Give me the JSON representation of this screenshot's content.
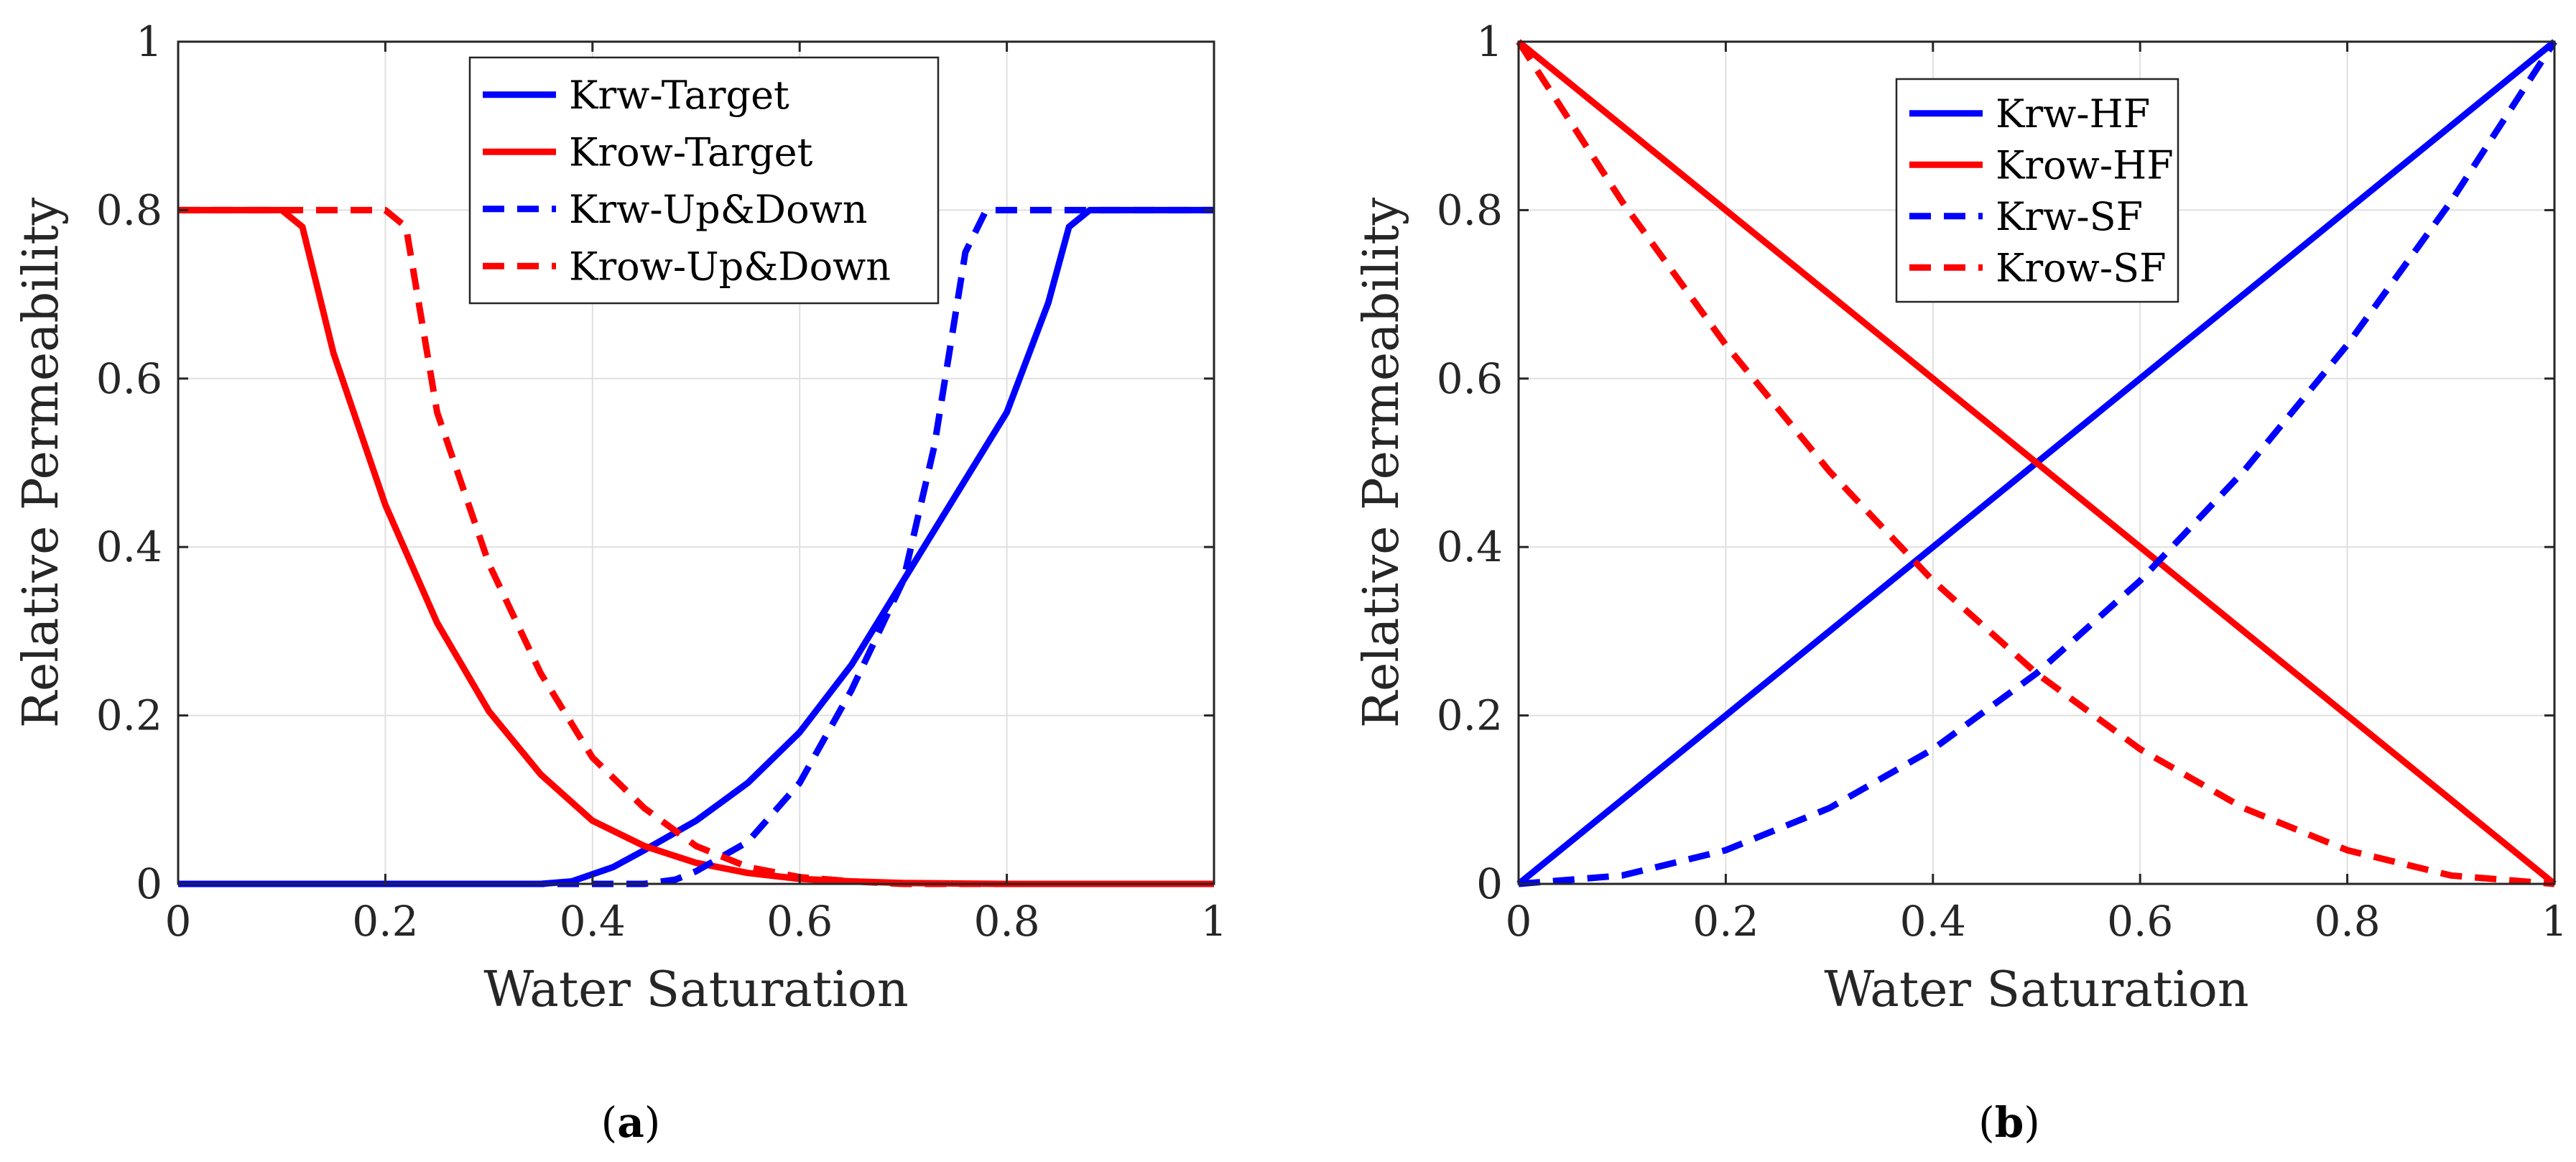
{
  "chart_data": [
    {
      "type": "line",
      "panel_label": "a",
      "title": "",
      "xlabel": "Water Saturation",
      "ylabel": "Relative Permeability",
      "xlim": [
        0,
        1
      ],
      "ylim": [
        0,
        1
      ],
      "xticks": [
        0,
        0.2,
        0.4,
        0.6,
        0.8,
        1
      ],
      "yticks": [
        0,
        0.2,
        0.4,
        0.6,
        0.8,
        1
      ],
      "xtick_labels": [
        "0",
        "0.2",
        "0.4",
        "0.6",
        "0.8",
        "1"
      ],
      "ytick_labels": [
        "0",
        "0.2",
        "0.4",
        "0.6",
        "0.8",
        "1"
      ],
      "grid": true,
      "legend_position": "top-center",
      "series": [
        {
          "name": "Krw-Target",
          "color": "#0000ff",
          "dash": "solid",
          "x": [
            0,
            0.1,
            0.2,
            0.3,
            0.35,
            0.38,
            0.42,
            0.45,
            0.5,
            0.55,
            0.6,
            0.65,
            0.7,
            0.75,
            0.8,
            0.84,
            0.86,
            0.88,
            0.9,
            1.0
          ],
          "y": [
            0,
            0,
            0,
            0,
            0,
            0.003,
            0.02,
            0.04,
            0.075,
            0.12,
            0.18,
            0.26,
            0.36,
            0.46,
            0.56,
            0.69,
            0.78,
            0.8,
            0.8,
            0.8
          ]
        },
        {
          "name": "Krow-Target",
          "color": "#ff0000",
          "dash": "solid",
          "x": [
            0,
            0.1,
            0.12,
            0.15,
            0.2,
            0.25,
            0.3,
            0.35,
            0.4,
            0.45,
            0.5,
            0.55,
            0.6,
            0.65,
            0.7,
            0.8,
            1.0
          ],
          "y": [
            0.8,
            0.8,
            0.78,
            0.63,
            0.45,
            0.31,
            0.205,
            0.13,
            0.075,
            0.045,
            0.025,
            0.013,
            0.006,
            0.003,
            0.001,
            0,
            0
          ]
        },
        {
          "name": "Krw-Up&Down",
          "color": "#0000ff",
          "dash": "dashed",
          "x": [
            0,
            0.45,
            0.48,
            0.5,
            0.55,
            0.6,
            0.65,
            0.7,
            0.73,
            0.76,
            0.78,
            0.8,
            1.0
          ],
          "y": [
            0,
            0,
            0.005,
            0.015,
            0.05,
            0.12,
            0.23,
            0.36,
            0.52,
            0.75,
            0.8,
            0.8,
            0.8
          ]
        },
        {
          "name": "Krow-Up&Down",
          "color": "#ff0000",
          "dash": "dashed",
          "x": [
            0,
            0.2,
            0.22,
            0.25,
            0.3,
            0.35,
            0.4,
            0.45,
            0.5,
            0.55,
            0.6,
            0.65,
            0.7,
            1.0
          ],
          "y": [
            0.8,
            0.8,
            0.78,
            0.56,
            0.38,
            0.25,
            0.15,
            0.09,
            0.045,
            0.02,
            0.008,
            0.003,
            0,
            0
          ]
        }
      ]
    },
    {
      "type": "line",
      "panel_label": "b",
      "title": "",
      "xlabel": "Water Saturation",
      "ylabel": "Relative Permeability",
      "xlim": [
        0,
        1
      ],
      "ylim": [
        0,
        1
      ],
      "xticks": [
        0,
        0.2,
        0.4,
        0.6,
        0.8,
        1
      ],
      "yticks": [
        0,
        0.2,
        0.4,
        0.6,
        0.8,
        1
      ],
      "xtick_labels": [
        "0",
        "0.2",
        "0.4",
        "0.6",
        "0.8",
        "1"
      ],
      "ytick_labels": [
        "0",
        "0.2",
        "0.4",
        "0.6",
        "0.8",
        "1"
      ],
      "grid": true,
      "legend_position": "top-center",
      "series": [
        {
          "name": "Krw-HF",
          "color": "#0000ff",
          "dash": "solid",
          "x": [
            0,
            1
          ],
          "y": [
            0,
            1
          ]
        },
        {
          "name": "Krow-HF",
          "color": "#ff0000",
          "dash": "solid",
          "x": [
            0,
            1
          ],
          "y": [
            1,
            0
          ]
        },
        {
          "name": "Krw-SF",
          "color": "#0000ff",
          "dash": "dashed",
          "x": [
            0,
            0.1,
            0.2,
            0.3,
            0.4,
            0.5,
            0.6,
            0.7,
            0.8,
            0.9,
            1.0
          ],
          "y": [
            0,
            0.01,
            0.04,
            0.09,
            0.16,
            0.25,
            0.36,
            0.49,
            0.64,
            0.81,
            1.0
          ]
        },
        {
          "name": "Krow-SF",
          "color": "#ff0000",
          "dash": "dashed",
          "x": [
            0,
            0.1,
            0.2,
            0.3,
            0.4,
            0.5,
            0.6,
            0.7,
            0.8,
            0.9,
            1.0
          ],
          "y": [
            1.0,
            0.81,
            0.64,
            0.49,
            0.36,
            0.25,
            0.16,
            0.09,
            0.04,
            0.01,
            0
          ]
        }
      ]
    }
  ]
}
